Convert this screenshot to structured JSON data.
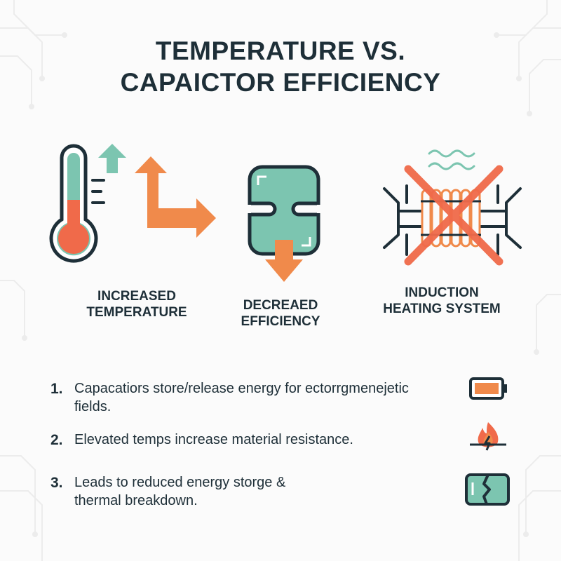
{
  "title": {
    "line1": "TEMPERATURE VS.",
    "line2": "CAPAICTOR EFFICIENCY"
  },
  "panels": [
    {
      "id": "temperature",
      "icon": "thermometer-icon",
      "line1": "INCREASED",
      "line2": "TEMPERATURE"
    },
    {
      "id": "efficiency",
      "icon": "capacitor-icon",
      "line1": "DECREAED",
      "line2": "EFFICIENCY"
    },
    {
      "id": "induction",
      "icon": "induction-coil-icon",
      "line1": "INDUCTION",
      "line2": "HEATING SYSTEM"
    }
  ],
  "points": [
    {
      "num": "1.",
      "line1": "Capacatiors store/release energy for ectorrgmenejetic",
      "line2": "fields.",
      "icon": "battery-icon"
    },
    {
      "num": "2.",
      "line1": "Elevated temps increase material resistance.",
      "line2": "",
      "icon": "fire-icon"
    },
    {
      "num": "3.",
      "line1": "Leads to reduced energy storge &",
      "line2": "thermal breakdown.",
      "icon": "broken-capacitor-icon"
    }
  ],
  "colors": {
    "dark": "#1e2f38",
    "teal": "#7cc5b0",
    "orange": "#f08a4b",
    "red": "#f06a4a",
    "background": "#fbfbfb"
  }
}
